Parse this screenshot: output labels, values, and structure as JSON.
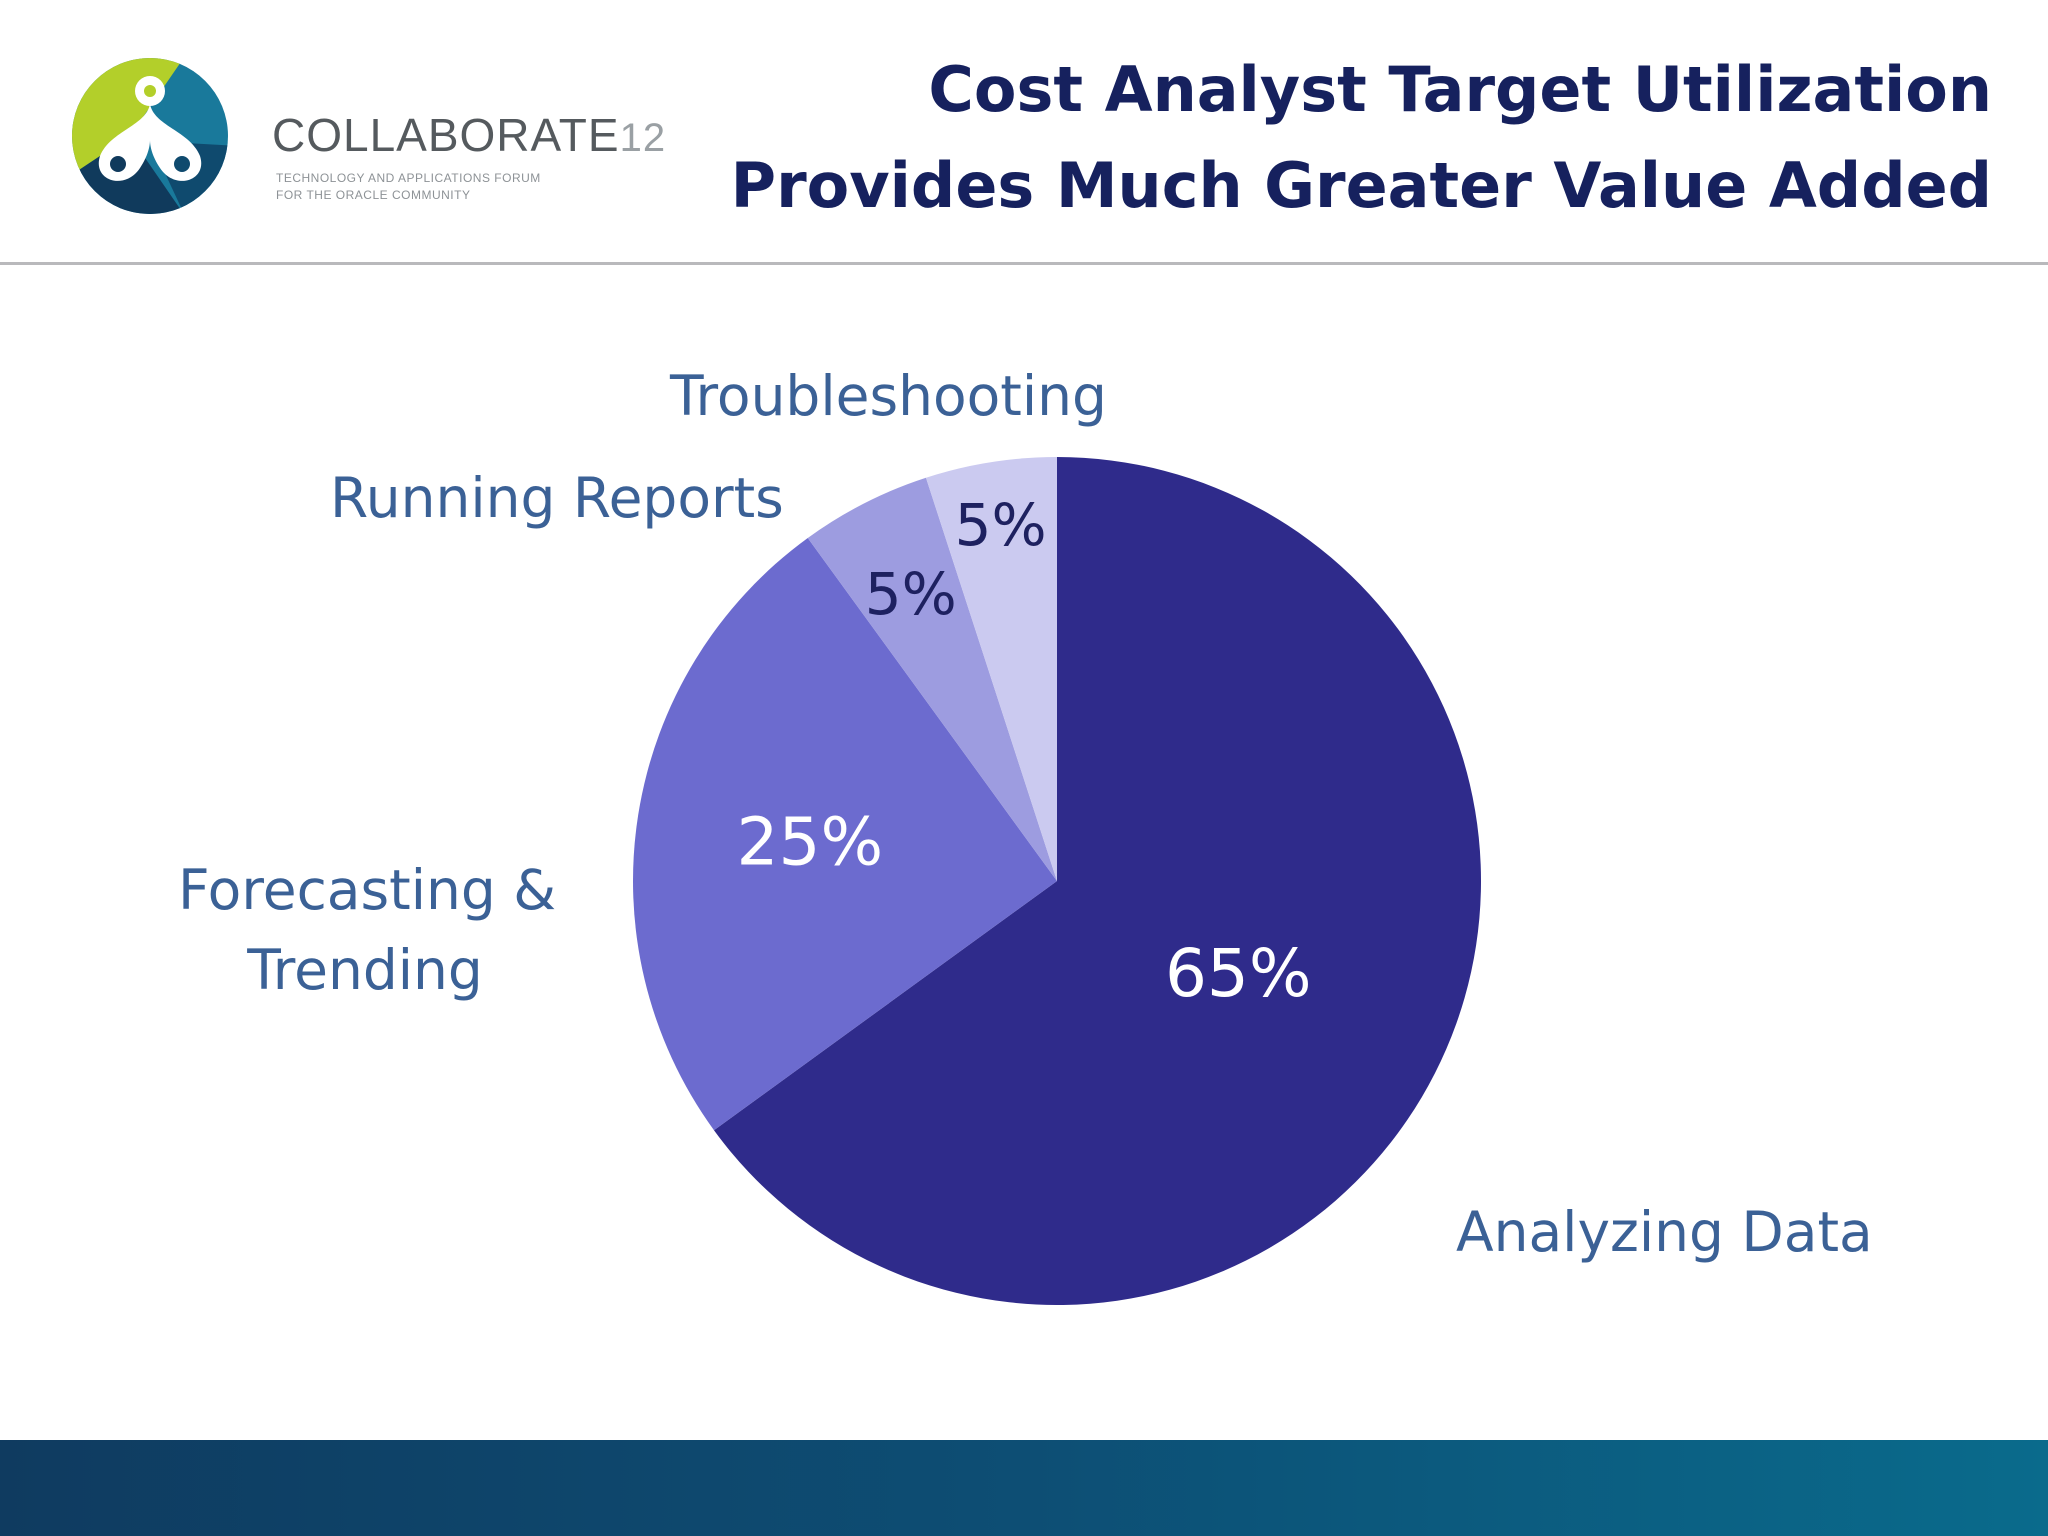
{
  "logo": {
    "wordmark": "COLLABORATE",
    "number": "12",
    "tagline_line1": "TECHNOLOGY AND APPLICATIONS FORUM",
    "tagline_line2": "FOR THE ORACLE COMMUNITY",
    "colors": {
      "lime": "#b3cf2a",
      "teal": "#19799b",
      "navy": "#103a5c"
    }
  },
  "title": {
    "line1": "Cost Analyst Target Utilization",
    "line2": "Provides Much Greater Value Added"
  },
  "chart_data": {
    "type": "pie",
    "start_angle": "12 o'clock",
    "direction": "clockwise",
    "slices": [
      {
        "name": "Analyzing Data",
        "value": 65,
        "label": "65%",
        "color": "#2f2b8b",
        "label_color": "#ffffff"
      },
      {
        "name": "Forecasting & Trending",
        "value": 25,
        "label": "25%",
        "color": "#6c6bcf",
        "label_color": "#ffffff"
      },
      {
        "name": "Running Reports",
        "value": 5,
        "label": "5%",
        "color": "#9d9ce0",
        "label_color": "#1e2160"
      },
      {
        "name": "Troubleshooting",
        "value": 5,
        "label": "5%",
        "color": "#cbcaf0",
        "label_color": "#1e2160"
      }
    ],
    "category_label_color": "#3b6196"
  },
  "category_labels": {
    "analyzing": "Analyzing Data",
    "forecasting_line1": "Forecasting &",
    "forecasting_line2": "Trending",
    "running": "Running Reports",
    "troubleshooting": "Troubleshooting"
  }
}
